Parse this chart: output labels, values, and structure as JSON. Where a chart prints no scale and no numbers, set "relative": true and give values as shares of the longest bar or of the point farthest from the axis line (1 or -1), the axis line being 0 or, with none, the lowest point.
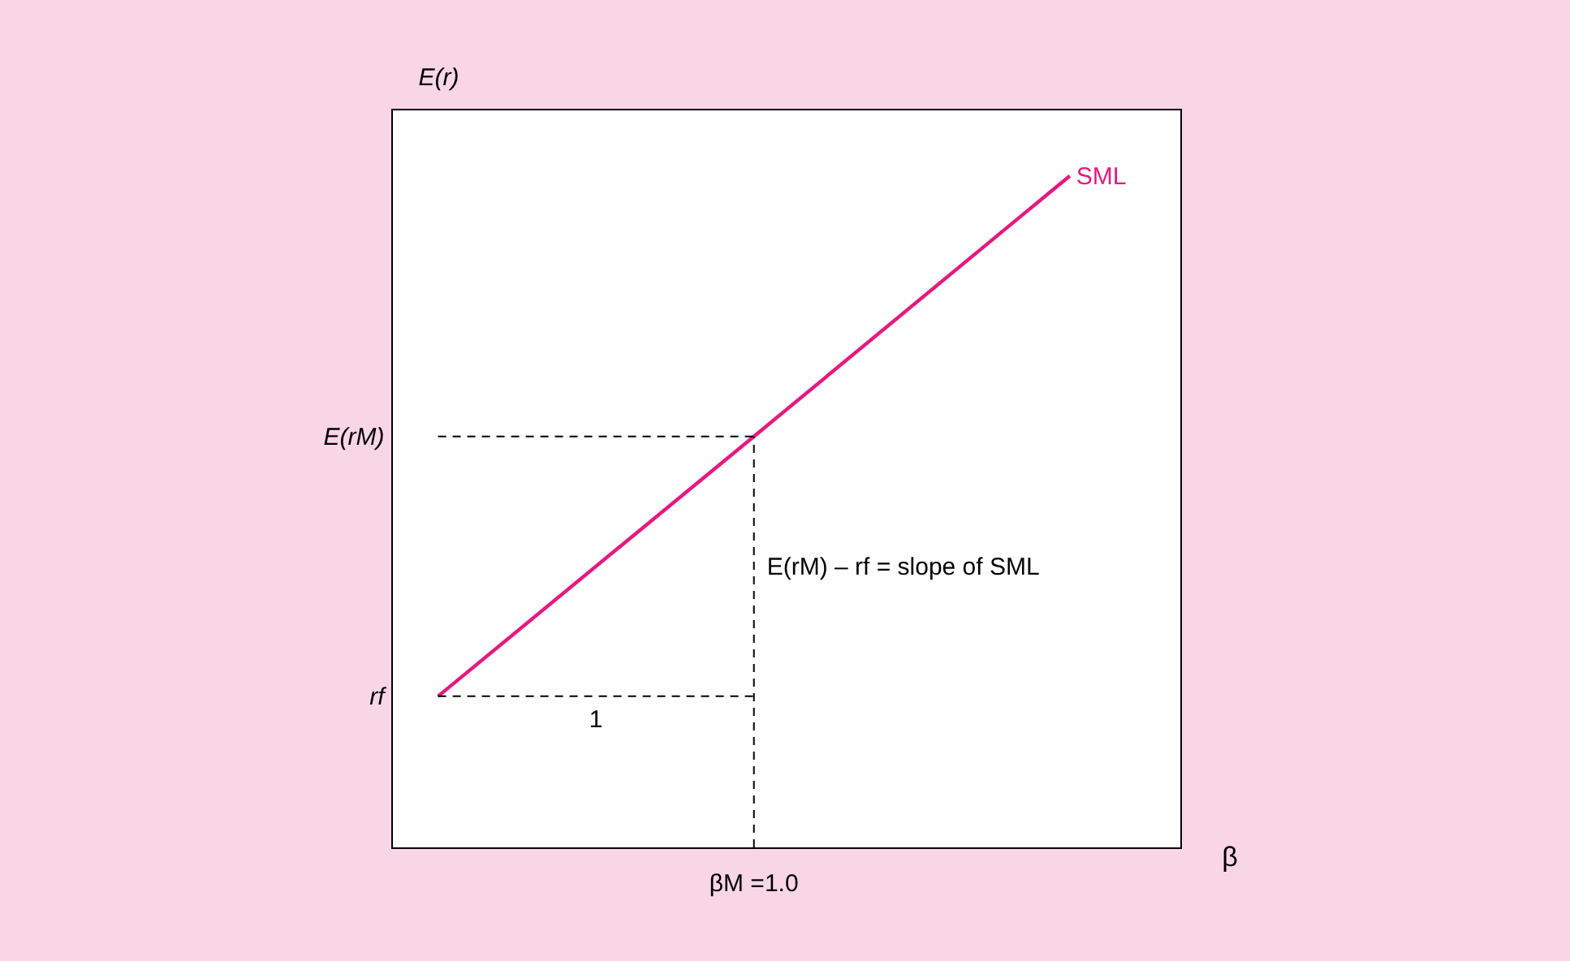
{
  "chart_data": {
    "type": "line",
    "relative": true,
    "xlabel": "β",
    "ylabel": "E(r)",
    "categories": [
      null,
      null,
      null
    ],
    "series": [
      {
        "name": "SML",
        "color": "#e6197f",
        "values": [
          0.225,
          0.612,
          1.0
        ]
      }
    ],
    "ref_lines": [
      {
        "axis": "y",
        "value": 0.612,
        "label": "E(rM)",
        "line_style": "dashed",
        "color": "#000000"
      },
      {
        "axis": "y",
        "value": 0.225,
        "label": "rf",
        "line_style": "dashed",
        "color": "#000000"
      }
    ],
    "annotations": [
      "1",
      "E(rM) – rf = slope of SML",
      "βM =1.0"
    ],
    "grid": false,
    "marker": "none",
    "line_style": "solid"
  }
}
